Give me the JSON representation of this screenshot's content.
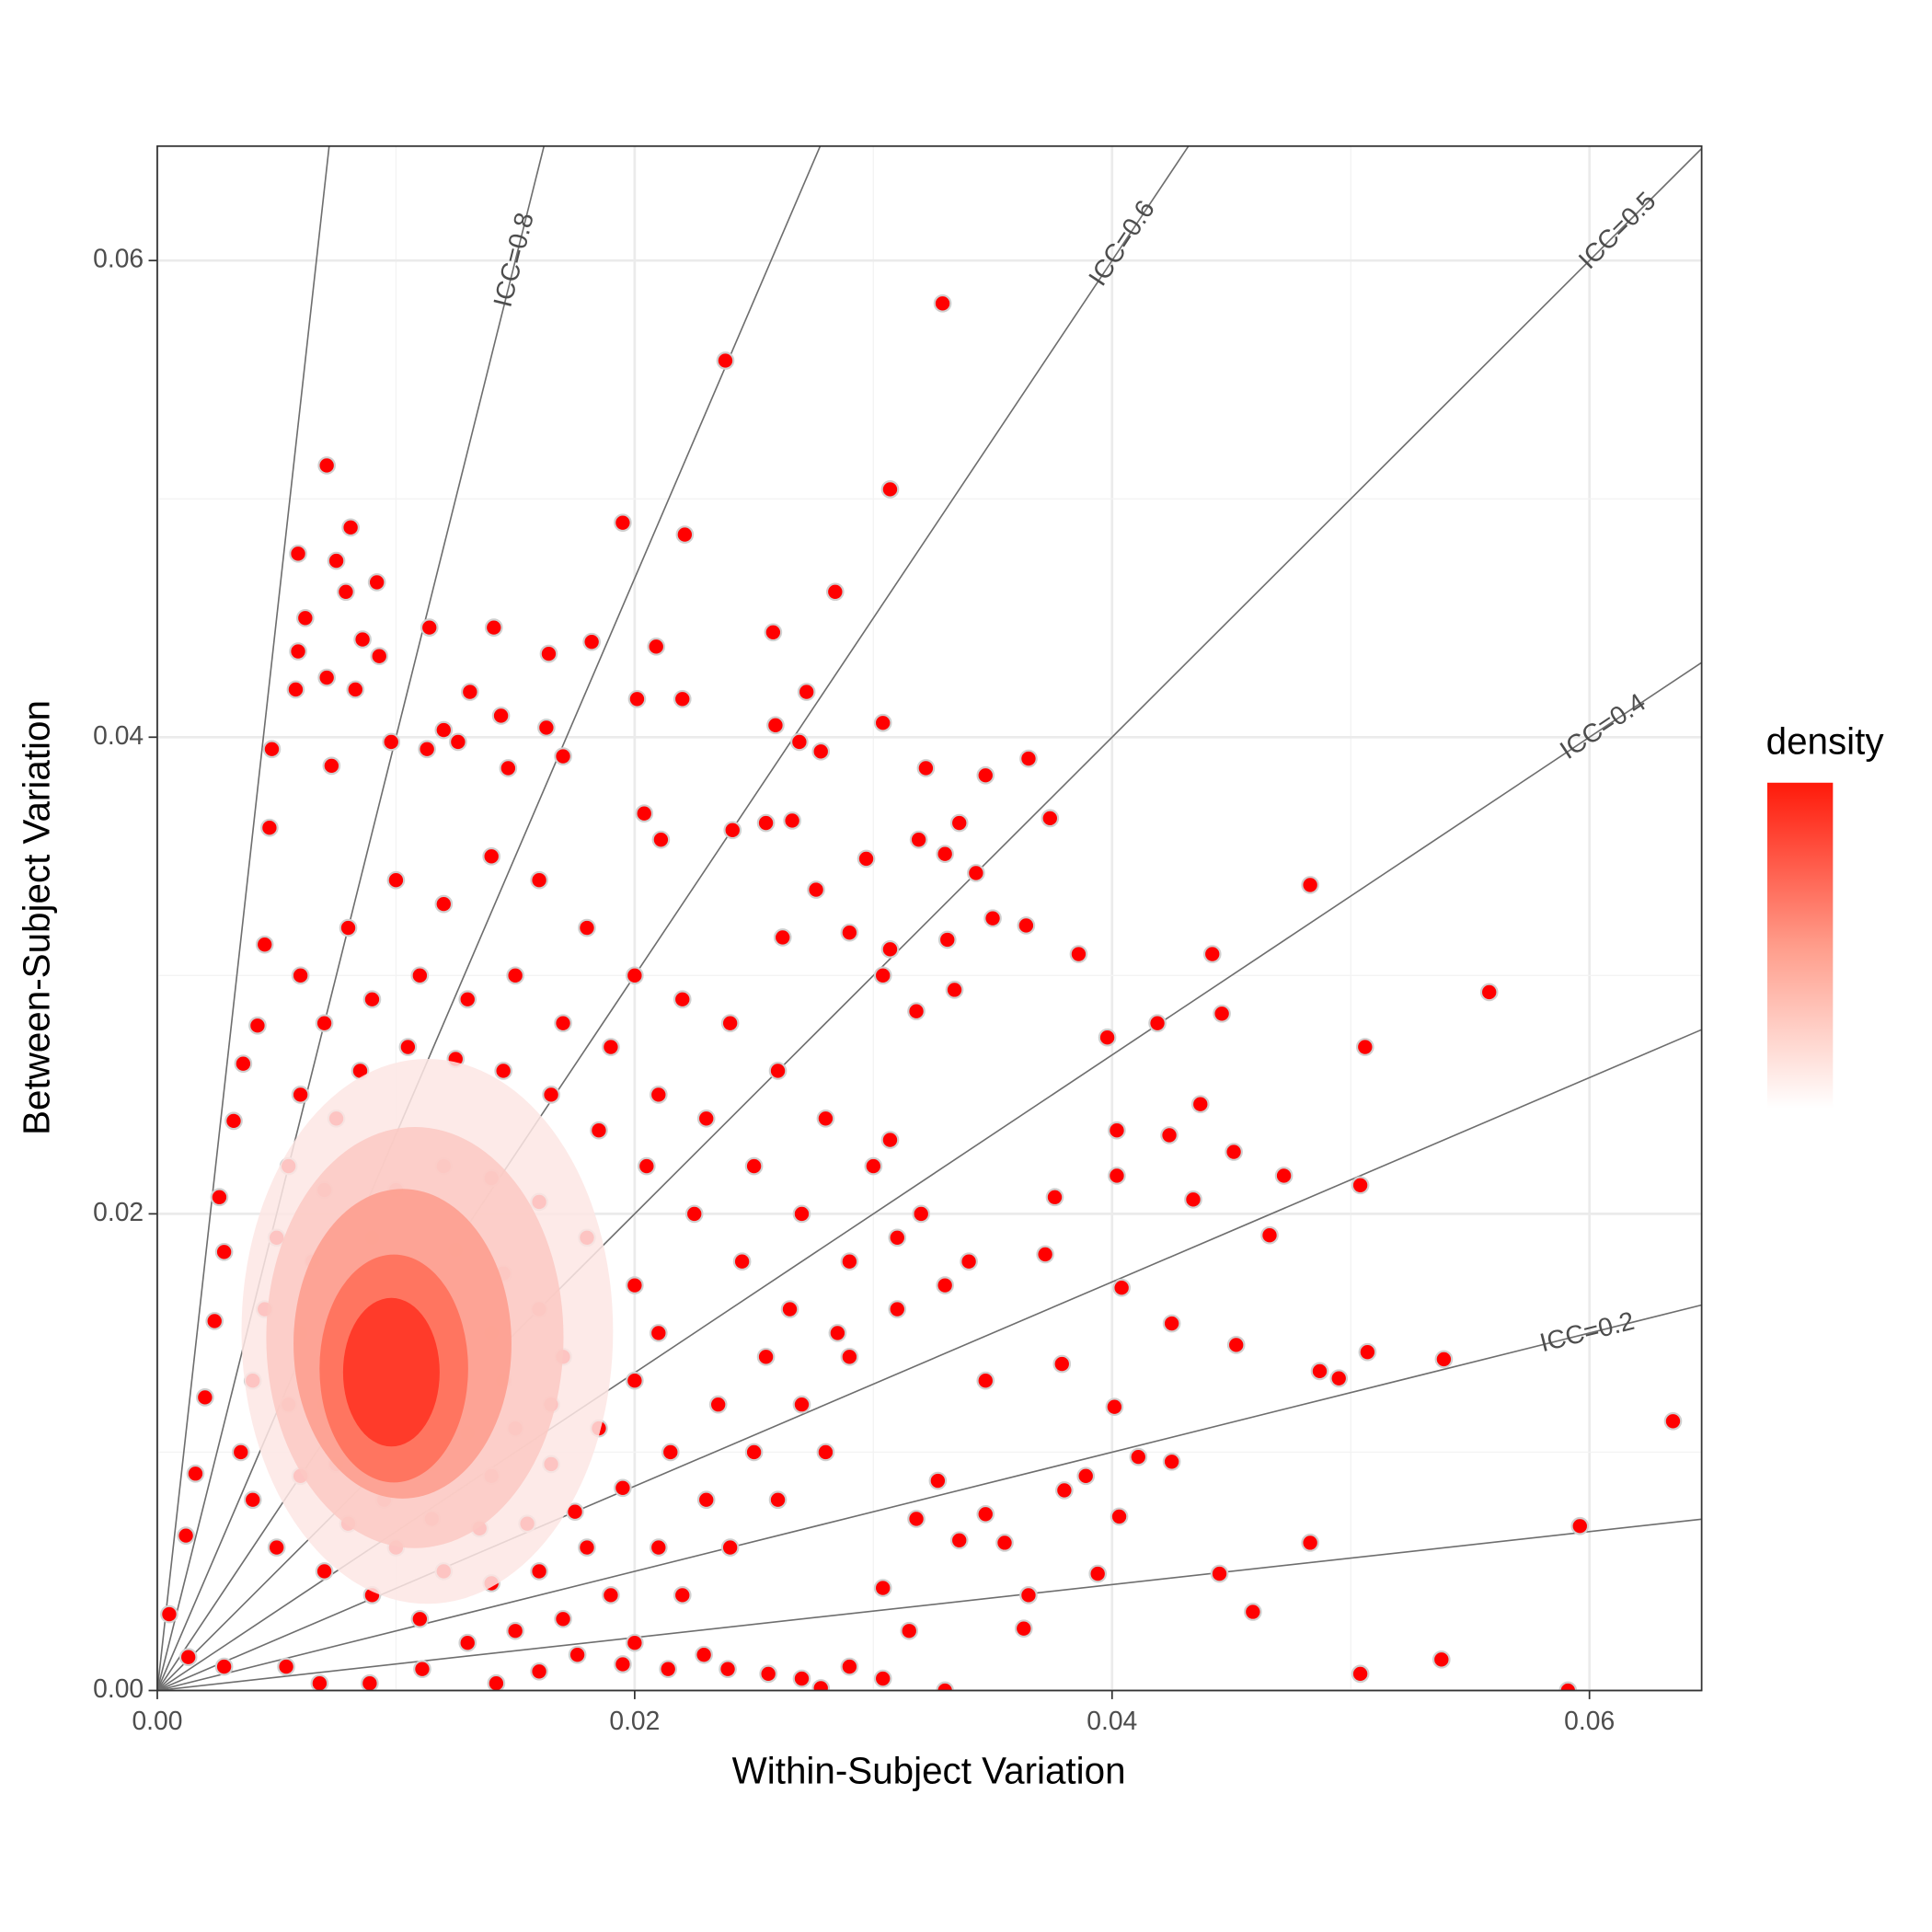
{
  "chart_data": {
    "type": "scatter",
    "x_label": "Within-Subject Variation",
    "y_label": "Between-Subject Variation",
    "legend_title": "density",
    "color": "#ff0000",
    "stroke": "#d0d0d0",
    "grid": true,
    "xlim": [
      0,
      0.0647
    ],
    "ylim": [
      0,
      0.0648
    ],
    "xticks": [
      {
        "value": 0,
        "label": "0.00"
      },
      0.02,
      0.04,
      0.06
    ],
    "yticks": [
      {
        "value": 0,
        "label": "0.00"
      },
      0.02,
      0.04,
      0.06
    ],
    "reference_lines": [
      {
        "value": 0.1
      },
      {
        "value": 0.2,
        "label": "ICC=0.2"
      },
      {
        "value": 0.3
      },
      {
        "value": 0.4,
        "label": "ICC=0.4"
      },
      {
        "value": 0.5,
        "label": "ICC=0.5"
      },
      {
        "value": 0.6,
        "label": "ICC=0.6"
      },
      {
        "value": 0.7
      },
      {
        "value": 0.8,
        "label": "ICC=0.8"
      },
      {
        "value": 0.9
      }
    ],
    "reference_line_color": "#6e6e6e",
    "x": [
      0.0329,
      0.0238,
      0.0071,
      0.0307,
      0.0195,
      0.0221,
      0.0284,
      0.0059,
      0.0081,
      0.0258,
      0.0209,
      0.0114,
      0.0141,
      0.0164,
      0.0182,
      0.0272,
      0.0201,
      0.022,
      0.0304,
      0.0259,
      0.0269,
      0.0365,
      0.0278,
      0.0322,
      0.0347,
      0.0374,
      0.0483,
      0.0558,
      0.0506,
      0.0442,
      0.0446,
      0.0419,
      0.0398,
      0.0437,
      0.0424,
      0.0451,
      0.0472,
      0.0434,
      0.0466,
      0.0504,
      0.0507,
      0.0487,
      0.0495,
      0.0539,
      0.0635,
      0.0596,
      0.0538,
      0.0504,
      0.0591,
      0.0459,
      0.0445,
      0.0483,
      0.0452,
      0.0425,
      0.0411,
      0.0425,
      0.0403,
      0.0394,
      0.0389,
      0.038,
      0.0363,
      0.0365,
      0.033,
      0.0304,
      0.0315,
      0.0401,
      0.0404,
      0.0402,
      0.0402,
      0.0379,
      0.0372,
      0.0376,
      0.0386,
      0.035,
      0.0364,
      0.0331,
      0.0334,
      0.0318,
      0.0304,
      0.0307,
      0.0297,
      0.0276,
      0.029,
      0.0262,
      0.033,
      0.0336,
      0.0319,
      0.0343,
      0.0307,
      0.0347,
      0.0336,
      0.0347,
      0.0355,
      0.0327,
      0.0318,
      0.0304,
      0.029,
      0.0278,
      0.027,
      0.0256,
      0.0239,
      0.0229,
      0.0214,
      0.0195,
      0.0176,
      0.016,
      0.0142,
      0.0111,
      0.0089,
      0.0068,
      0.0054,
      0.0028,
      0.0013,
      0.0005,
      0.0012,
      0.0016,
      0.002,
      0.0024,
      0.0028,
      0.0026,
      0.0032,
      0.0036,
      0.0042,
      0.0045,
      0.0047,
      0.0048,
      0.0058,
      0.0059,
      0.0062,
      0.0079,
      0.0092,
      0.0075,
      0.0086,
      0.0093,
      0.0071,
      0.0083,
      0.0073,
      0.0098,
      0.012,
      0.0144,
      0.0131,
      0.0126,
      0.0113,
      0.0163,
      0.017,
      0.0147,
      0.0204,
      0.0211,
      0.0241,
      0.0255,
      0.0266,
      0.006,
      0.008,
      0.01,
      0.012,
      0.014,
      0.016,
      0.018,
      0.02,
      0.022,
      0.024,
      0.026,
      0.028,
      0.03,
      0.032,
      0.034,
      0.031,
      0.029,
      0.027,
      0.025,
      0.023,
      0.021,
      0.019,
      0.017,
      0.015,
      0.013,
      0.011,
      0.009,
      0.007,
      0.005,
      0.004,
      0.0035,
      0.004,
      0.0045,
      0.005,
      0.0055,
      0.006,
      0.007,
      0.009,
      0.011,
      0.013,
      0.015,
      0.017,
      0.019,
      0.021,
      0.023,
      0.025,
      0.027,
      0.029,
      0.031,
      0.033,
      0.028,
      0.026,
      0.024,
      0.022,
      0.02,
      0.018,
      0.016,
      0.014,
      0.012,
      0.01,
      0.008,
      0.006,
      0.0055,
      0.006,
      0.0065,
      0.007,
      0.0075,
      0.0085,
      0.0105,
      0.0125,
      0.0145,
      0.0165,
      0.0185,
      0.0205,
      0.0225,
      0.0245,
      0.0265,
      0.0285,
      0.0255,
      0.0235,
      0.0215,
      0.0195,
      0.0175,
      0.0155,
      0.0135,
      0.0115,
      0.0095,
      0.0075,
      0.007,
      0.0072,
      0.008,
      0.009,
      0.01,
      0.012,
      0.014,
      0.016,
      0.018,
      0.02,
      0.021,
      0.02,
      0.0185,
      0.0165,
      0.014,
      0.0115,
      0.0095,
      0.0088,
      0.0092,
      0.0105,
      0.0125,
      0.0145,
      0.016,
      0.017,
      0.0165,
      0.015,
      0.013,
      0.011,
      0.0105,
      0.012,
      0.014,
      0.0145,
      0.0125
    ],
    "values": [
      0.0582,
      0.0558,
      0.0514,
      0.0504,
      0.049,
      0.0485,
      0.0461,
      0.0477,
      0.0488,
      0.0444,
      0.0438,
      0.0446,
      0.0446,
      0.0435,
      0.044,
      0.0419,
      0.0416,
      0.0416,
      0.0406,
      0.0405,
      0.0398,
      0.0391,
      0.0394,
      0.0387,
      0.0384,
      0.0366,
      0.0338,
      0.0293,
      0.027,
      0.0309,
      0.0284,
      0.028,
      0.0274,
      0.0246,
      0.0233,
      0.0226,
      0.0216,
      0.0206,
      0.0191,
      0.0212,
      0.0142,
      0.0134,
      0.0131,
      0.0139,
      0.0113,
      0.0069,
      0.0013,
      0.0007,
      0.0,
      0.0033,
      0.0049,
      0.0062,
      0.0145,
      0.0154,
      0.0098,
      0.0096,
      0.0073,
      0.0049,
      0.009,
      0.0084,
      0.0026,
      0.004,
      0.0,
      0.0005,
      0.0025,
      0.0119,
      0.0169,
      0.0216,
      0.0235,
      0.0137,
      0.0183,
      0.0207,
      0.0309,
      0.0324,
      0.0321,
      0.0315,
      0.0294,
      0.0285,
      0.03,
      0.0311,
      0.0349,
      0.0336,
      0.0318,
      0.0316,
      0.0351,
      0.0364,
      0.0357,
      0.0343,
      0.0231,
      0.013,
      0.0063,
      0.0074,
      0.0062,
      0.0088,
      0.0072,
      0.0043,
      0.001,
      0.0001,
      0.0005,
      0.0007,
      0.0009,
      0.0015,
      0.0009,
      0.0011,
      0.0015,
      0.0008,
      0.0003,
      0.0009,
      0.0003,
      0.0003,
      0.001,
      0.001,
      0.0014,
      0.0032,
      0.0065,
      0.0091,
      0.0123,
      0.0155,
      0.0184,
      0.0207,
      0.0239,
      0.0263,
      0.0279,
      0.0313,
      0.0362,
      0.0395,
      0.042,
      0.0436,
      0.045,
      0.0461,
      0.0465,
      0.0474,
      0.0441,
      0.0434,
      0.0425,
      0.042,
      0.0388,
      0.0398,
      0.0403,
      0.0409,
      0.0419,
      0.0398,
      0.0395,
      0.0404,
      0.0392,
      0.0387,
      0.0368,
      0.0357,
      0.0361,
      0.0364,
      0.0365,
      0.03,
      0.032,
      0.034,
      0.033,
      0.035,
      0.034,
      0.032,
      0.03,
      0.029,
      0.028,
      0.026,
      0.024,
      0.022,
      0.02,
      0.018,
      0.016,
      0.014,
      0.012,
      0.01,
      0.008,
      0.006,
      0.004,
      0.003,
      0.0025,
      0.002,
      0.003,
      0.004,
      0.005,
      0.006,
      0.008,
      0.01,
      0.013,
      0.016,
      0.019,
      0.022,
      0.025,
      0.028,
      0.029,
      0.03,
      0.029,
      0.03,
      0.028,
      0.027,
      0.025,
      0.024,
      0.022,
      0.02,
      0.018,
      0.019,
      0.017,
      0.01,
      0.008,
      0.006,
      0.004,
      0.002,
      0.006,
      0.005,
      0.0045,
      0.005,
      0.006,
      0.007,
      0.009,
      0.012,
      0.015,
      0.018,
      0.021,
      0.024,
      0.026,
      0.027,
      0.0265,
      0.026,
      0.025,
      0.0235,
      0.022,
      0.02,
      0.018,
      0.016,
      0.015,
      0.014,
      0.012,
      0.01,
      0.0085,
      0.0075,
      0.007,
      0.0068,
      0.0072,
      0.008,
      0.0095,
      0.012,
      0.015,
      0.017,
      0.019,
      0.021,
      0.022,
      0.0215,
      0.0205,
      0.019,
      0.017,
      0.015,
      0.013,
      0.011,
      0.0095,
      0.009,
      0.0095,
      0.011,
      0.0135,
      0.016,
      0.018,
      0.0185,
      0.0175,
      0.016,
      0.014,
      0.012,
      0.011,
      0.0108,
      0.012,
      0.0145,
      0.016,
      0.015,
      0.013,
      0.013
    ]
  }
}
